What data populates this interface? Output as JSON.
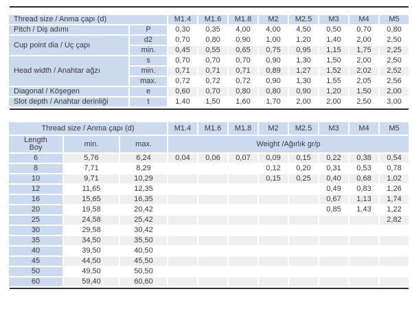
{
  "colors": {
    "header_blue": "#cbdaee",
    "stripe_gray": "#efefef",
    "rule_dark": "#2b2b2b",
    "text": "#3a3a3a"
  },
  "spec_table": {
    "header_label": "Thread size / Anma çapı (d)",
    "sizes": [
      "M1.4",
      "M1.6",
      "M1.8",
      "M2",
      "M2.5",
      "M3",
      "M4",
      "M5"
    ],
    "groups": [
      {
        "label": "Pitch / Diş adımı",
        "rows": [
          {
            "symbol": "P",
            "shade": false,
            "values": [
              "0,30",
              "0,35",
              "4,00",
              "4,00",
              "4,50",
              "0,50",
              "0,70",
              "0,80"
            ]
          }
        ]
      },
      {
        "label": "Cup point dia / Uç çapı",
        "rows": [
          {
            "symbol": "d2",
            "shade": false,
            "values": [
              "0,70",
              "0,80",
              "0,90",
              "1,00",
              "1,20",
              "1,40",
              "2,00",
              "2,50"
            ]
          },
          {
            "symbol": "min.",
            "shade": true,
            "values": [
              "0,45",
              "0,55",
              "0,65",
              "0,75",
              "0,95",
              "1,15",
              "1,75",
              "2,25"
            ]
          }
        ]
      },
      {
        "label": "Head width / Anahtar ağzı",
        "rows": [
          {
            "symbol": "s",
            "shade": false,
            "values": [
              "0,70",
              "0,70",
              "0,70",
              "0,90",
              "1,30",
              "1,50",
              "2,00",
              "2,50"
            ]
          },
          {
            "symbol": "min.",
            "shade": true,
            "values": [
              "0,71",
              "0,71",
              "0,71",
              "0,89",
              "1,27",
              "1,52",
              "2,02",
              "2,52"
            ]
          },
          {
            "symbol": "max.",
            "shade": false,
            "values": [
              "0,72",
              "0,72",
              "0,72",
              "0,90",
              "1,30",
              "1,55",
              "2,05",
              "2,56"
            ]
          }
        ]
      },
      {
        "label": "Diagonal / Köşegen",
        "rows": [
          {
            "symbol": "e",
            "shade": true,
            "values": [
              "0,60",
              "0,70",
              "0,80",
              "0,80",
              "0,90",
              "1,20",
              "1,50",
              "2,00"
            ]
          }
        ]
      },
      {
        "label": "Slot depth / Anahtar derinliği",
        "rows": [
          {
            "symbol": "t",
            "shade": false,
            "values": [
              "1,40",
              "1,50",
              "1,60",
              "1,70",
              "2,00",
              "2,00",
              "2,50",
              "3,00"
            ]
          }
        ]
      }
    ]
  },
  "weight_table": {
    "header_label": "Thread size / Anma çapı (d)",
    "sizes": [
      "M1.4",
      "M1.6",
      "M1.8",
      "M2",
      "M2.5",
      "M3",
      "M4",
      "M5"
    ],
    "length_label": "Length\nBoy",
    "min_label": "min.",
    "max_label": "max.",
    "weight_label": "Weight /Ağırlık gr/p",
    "rows": [
      {
        "length": "6",
        "min": "5,76",
        "max": "6,24",
        "shade": true,
        "weights": [
          "0,04",
          "0,06",
          "0,07",
          "0,09",
          "0,15",
          "0,22",
          "0,38",
          "0,54"
        ]
      },
      {
        "length": "8",
        "min": "7,71",
        "max": "8,29",
        "shade": false,
        "weights": [
          "",
          "",
          "",
          "0,12",
          "0,20",
          "0,31",
          "0,53",
          "0,78"
        ]
      },
      {
        "length": "10",
        "min": "9,71",
        "max": "10,29",
        "shade": true,
        "weights": [
          "",
          "",
          "",
          "0,15",
          "0,25",
          "0,40",
          "0,68",
          "1,02"
        ]
      },
      {
        "length": "12",
        "min": "11,65",
        "max": "12,35",
        "shade": false,
        "weights": [
          "",
          "",
          "",
          "",
          "",
          "0,49",
          "0,83",
          "1,26"
        ]
      },
      {
        "length": "16",
        "min": "15,65",
        "max": "16,35",
        "shade": true,
        "weights": [
          "",
          "",
          "",
          "",
          "",
          "0,67",
          "1,13",
          "1,74"
        ]
      },
      {
        "length": "20",
        "min": "19,58",
        "max": "20,42",
        "shade": false,
        "weights": [
          "",
          "",
          "",
          "",
          "",
          "0,85",
          "1,43",
          "1,22"
        ]
      },
      {
        "length": "25",
        "min": "24,58",
        "max": "25,42",
        "shade": true,
        "weights": [
          "",
          "",
          "",
          "",
          "",
          "",
          "",
          "2,82"
        ]
      },
      {
        "length": "30",
        "min": "29,58",
        "max": "30,42",
        "shade": false,
        "weights": [
          "",
          "",
          "",
          "",
          "",
          "",
          "",
          ""
        ]
      },
      {
        "length": "35",
        "min": "34,50",
        "max": "35,50",
        "shade": true,
        "weights": [
          "",
          "",
          "",
          "",
          "",
          "",
          "",
          ""
        ]
      },
      {
        "length": "40",
        "min": "39,50",
        "max": "40,50",
        "shade": false,
        "weights": [
          "",
          "",
          "",
          "",
          "",
          "",
          "",
          ""
        ]
      },
      {
        "length": "45",
        "min": "44,50",
        "max": "45,50",
        "shade": true,
        "weights": [
          "",
          "",
          "",
          "",
          "",
          "",
          "",
          ""
        ]
      },
      {
        "length": "50",
        "min": "49,50",
        "max": "50,50",
        "shade": false,
        "weights": [
          "",
          "",
          "",
          "",
          "",
          "",
          "",
          ""
        ]
      },
      {
        "length": "60",
        "min": "59,40",
        "max": "60,60",
        "shade": true,
        "weights": [
          "",
          "",
          "",
          "",
          "",
          "",
          "",
          ""
        ]
      }
    ]
  }
}
